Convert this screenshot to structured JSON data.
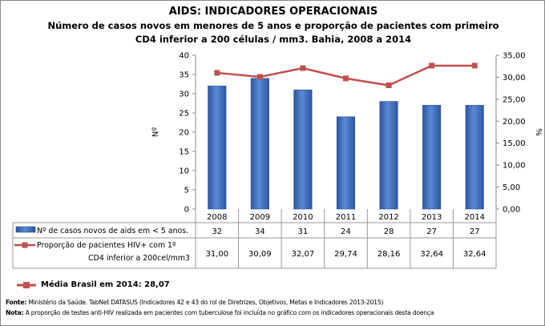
{
  "chart_data": {
    "type": "bar+line",
    "title": "AIDS: INDICADORES OPERACIONAIS",
    "subtitle": "Número de casos novos em menores de 5 anos e proporção de pacientes com primeiro CD4 inferior a 200 células / mm3. Bahia, 2008 a 2014",
    "subtitle_line1": "Número de casos novos em menores de 5 anos e proporção de pacientes com primeiro",
    "subtitle_line2": "CD4 inferior a 200 células / mm3. Bahia, 2008 a 2014",
    "categories": [
      "2008",
      "2009",
      "2010",
      "2011",
      "2012",
      "2013",
      "2014"
    ],
    "ylabel_left": "Nº",
    "ylabel_right": "%",
    "ylim_left": [
      0,
      40
    ],
    "ylim_right": [
      0,
      35
    ],
    "left_ticks": [
      "0",
      "5",
      "10",
      "15",
      "20",
      "25",
      "30",
      "35",
      "40"
    ],
    "right_ticks": [
      "0,00",
      "5,00",
      "10,00",
      "15,00",
      "20,00",
      "25,00",
      "30,00",
      "35,00"
    ],
    "series": [
      {
        "name": "Nº de casos novos de aids em < 5 anos.",
        "type": "bar",
        "axis": "left",
        "color": "#3f6fc0",
        "values": [
          32,
          34,
          31,
          24,
          28,
          27,
          27
        ],
        "labels": [
          "32",
          "34",
          "31",
          "24",
          "28",
          "27",
          "27"
        ]
      },
      {
        "name": "Proporção de pacientes HIV+ com 1º CD4 inferior a 200cel/mm3",
        "name_line1": "Proporção de pacientes HIV+ com 1º",
        "name_line2": "CD4 inferior a 200cel/mm3",
        "type": "line",
        "axis": "right",
        "color": "#c0504d",
        "values": [
          31.0,
          30.09,
          32.07,
          29.74,
          28.16,
          32.64,
          32.64
        ],
        "labels": [
          "31,00",
          "30,09",
          "32,07",
          "29,74",
          "28,16",
          "32,64",
          "32,64"
        ]
      }
    ],
    "legend": "data table below",
    "grid": false
  },
  "media": {
    "label": "Média Brasil em 2014: 28,07"
  },
  "fonte": {
    "label": "Fonte:",
    "text": " Ministério da Saúde. TabNet DATASUS (Indicadores 42 e 43 do rol de Diretrizes, Objetivos, Metas e Indicadores 2013-2015)"
  },
  "nota": {
    "label": "Nota:",
    "text": " A proporção de testes anti-HIV realizada em pacientes com tuberculose foi incluída no gráfico com os indicadores operacionais desta doença"
  }
}
